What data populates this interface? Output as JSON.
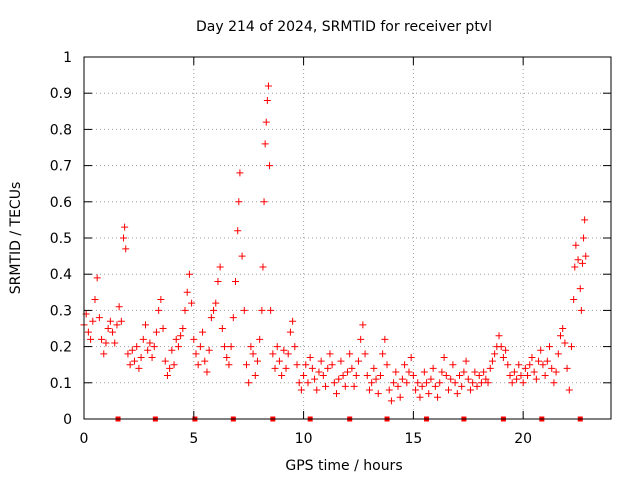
{
  "chart_data": {
    "type": "scatter",
    "title": "Day 214 of 2024, SRMTID for receiver ptvl",
    "xlabel": "GPS time / hours",
    "ylabel": "SRMTID / TECUs",
    "xlim": [
      0,
      24
    ],
    "ylim": [
      0,
      1
    ],
    "xticks": [
      0,
      5,
      10,
      15,
      20
    ],
    "xtick_labels": [
      "0",
      "5",
      "10",
      "15",
      "20"
    ],
    "yticks": [
      0,
      0.1,
      0.2,
      0.3,
      0.4,
      0.5,
      0.6,
      0.7,
      0.8,
      0.9,
      1
    ],
    "ytick_labels": [
      "0",
      "0.1",
      "0.2",
      "0.3",
      "0.4",
      "0.5",
      "0.6",
      "0.7",
      "0.8",
      "0.9",
      "1"
    ],
    "grid": true,
    "marker": "+",
    "color": "#ff0000",
    "series": [
      {
        "name": "SRMTID",
        "points": [
          [
            0.0,
            0.26
          ],
          [
            0.1,
            0.29
          ],
          [
            0.2,
            0.24
          ],
          [
            0.3,
            0.22
          ],
          [
            0.4,
            0.27
          ],
          [
            0.5,
            0.33
          ],
          [
            0.6,
            0.39
          ],
          [
            0.7,
            0.28
          ],
          [
            0.8,
            0.22
          ],
          [
            0.9,
            0.18
          ],
          [
            1.0,
            0.21
          ],
          [
            1.1,
            0.25
          ],
          [
            1.2,
            0.27
          ],
          [
            1.3,
            0.24
          ],
          [
            1.4,
            0.21
          ],
          [
            1.5,
            0.26
          ],
          [
            1.6,
            0.31
          ],
          [
            1.7,
            0.27
          ],
          [
            1.8,
            0.5
          ],
          [
            1.85,
            0.53
          ],
          [
            1.9,
            0.47
          ],
          [
            2.0,
            0.18
          ],
          [
            2.1,
            0.15
          ],
          [
            2.2,
            0.19
          ],
          [
            2.3,
            0.16
          ],
          [
            2.4,
            0.2
          ],
          [
            2.5,
            0.14
          ],
          [
            2.6,
            0.17
          ],
          [
            2.7,
            0.22
          ],
          [
            2.8,
            0.26
          ],
          [
            2.9,
            0.19
          ],
          [
            3.0,
            0.21
          ],
          [
            3.1,
            0.17
          ],
          [
            3.2,
            0.2
          ],
          [
            3.3,
            0.24
          ],
          [
            3.4,
            0.3
          ],
          [
            3.5,
            0.33
          ],
          [
            3.6,
            0.25
          ],
          [
            3.7,
            0.16
          ],
          [
            3.8,
            0.12
          ],
          [
            3.9,
            0.14
          ],
          [
            4.0,
            0.19
          ],
          [
            4.1,
            0.15
          ],
          [
            4.2,
            0.22
          ],
          [
            4.3,
            0.2
          ],
          [
            4.4,
            0.23
          ],
          [
            4.5,
            0.25
          ],
          [
            4.6,
            0.3
          ],
          [
            4.7,
            0.35
          ],
          [
            4.8,
            0.4
          ],
          [
            4.9,
            0.32
          ],
          [
            5.0,
            0.22
          ],
          [
            5.1,
            0.18
          ],
          [
            5.2,
            0.15
          ],
          [
            5.3,
            0.2
          ],
          [
            5.4,
            0.24
          ],
          [
            5.5,
            0.16
          ],
          [
            5.6,
            0.13
          ],
          [
            5.7,
            0.19
          ],
          [
            5.8,
            0.28
          ],
          [
            5.9,
            0.3
          ],
          [
            6.0,
            0.32
          ],
          [
            6.1,
            0.38
          ],
          [
            6.2,
            0.42
          ],
          [
            6.3,
            0.25
          ],
          [
            6.4,
            0.2
          ],
          [
            6.5,
            0.17
          ],
          [
            6.6,
            0.15
          ],
          [
            6.7,
            0.2
          ],
          [
            6.8,
            0.28
          ],
          [
            6.9,
            0.38
          ],
          [
            7.0,
            0.52
          ],
          [
            7.05,
            0.6
          ],
          [
            7.1,
            0.68
          ],
          [
            7.2,
            0.45
          ],
          [
            7.3,
            0.3
          ],
          [
            7.4,
            0.15
          ],
          [
            7.5,
            0.1
          ],
          [
            7.6,
            0.2
          ],
          [
            7.7,
            0.18
          ],
          [
            7.8,
            0.12
          ],
          [
            7.9,
            0.16
          ],
          [
            8.0,
            0.22
          ],
          [
            8.1,
            0.3
          ],
          [
            8.15,
            0.42
          ],
          [
            8.2,
            0.6
          ],
          [
            8.25,
            0.76
          ],
          [
            8.3,
            0.82
          ],
          [
            8.35,
            0.88
          ],
          [
            8.4,
            0.92
          ],
          [
            8.45,
            0.7
          ],
          [
            8.5,
            0.3
          ],
          [
            8.6,
            0.18
          ],
          [
            8.7,
            0.14
          ],
          [
            8.8,
            0.2
          ],
          [
            8.9,
            0.16
          ],
          [
            9.0,
            0.12
          ],
          [
            9.1,
            0.19
          ],
          [
            9.2,
            0.14
          ],
          [
            9.3,
            0.18
          ],
          [
            9.4,
            0.24
          ],
          [
            9.5,
            0.27
          ],
          [
            9.6,
            0.2
          ],
          [
            9.7,
            0.15
          ],
          [
            9.8,
            0.1
          ],
          [
            9.9,
            0.08
          ],
          [
            10.0,
            0.12
          ],
          [
            10.1,
            0.15
          ],
          [
            10.2,
            0.1
          ],
          [
            10.3,
            0.17
          ],
          [
            10.4,
            0.14
          ],
          [
            10.5,
            0.11
          ],
          [
            10.6,
            0.08
          ],
          [
            10.7,
            0.13
          ],
          [
            10.8,
            0.16
          ],
          [
            10.9,
            0.12
          ],
          [
            11.0,
            0.09
          ],
          [
            11.1,
            0.14
          ],
          [
            11.2,
            0.18
          ],
          [
            11.3,
            0.15
          ],
          [
            11.4,
            0.1
          ],
          [
            11.5,
            0.07
          ],
          [
            11.6,
            0.11
          ],
          [
            11.7,
            0.16
          ],
          [
            11.8,
            0.12
          ],
          [
            11.9,
            0.09
          ],
          [
            12.0,
            0.13
          ],
          [
            12.1,
            0.18
          ],
          [
            12.2,
            0.14
          ],
          [
            12.3,
            0.09
          ],
          [
            12.4,
            0.12
          ],
          [
            12.5,
            0.16
          ],
          [
            12.6,
            0.22
          ],
          [
            12.7,
            0.26
          ],
          [
            12.8,
            0.18
          ],
          [
            12.9,
            0.12
          ],
          [
            13.0,
            0.08
          ],
          [
            13.1,
            0.1
          ],
          [
            13.2,
            0.14
          ],
          [
            13.3,
            0.11
          ],
          [
            13.4,
            0.07
          ],
          [
            13.5,
            0.12
          ],
          [
            13.6,
            0.18
          ],
          [
            13.7,
            0.22
          ],
          [
            13.8,
            0.15
          ],
          [
            13.9,
            0.08
          ],
          [
            14.0,
            0.05
          ],
          [
            14.1,
            0.1
          ],
          [
            14.2,
            0.13
          ],
          [
            14.3,
            0.09
          ],
          [
            14.4,
            0.06
          ],
          [
            14.5,
            0.11
          ],
          [
            14.6,
            0.15
          ],
          [
            14.7,
            0.1
          ],
          [
            14.8,
            0.13
          ],
          [
            14.9,
            0.17
          ],
          [
            15.0,
            0.12
          ],
          [
            15.1,
            0.08
          ],
          [
            15.2,
            0.1
          ],
          [
            15.3,
            0.06
          ],
          [
            15.4,
            0.09
          ],
          [
            15.5,
            0.13
          ],
          [
            15.6,
            0.1
          ],
          [
            15.7,
            0.07
          ],
          [
            15.8,
            0.11
          ],
          [
            15.9,
            0.14
          ],
          [
            16.0,
            0.09
          ],
          [
            16.1,
            0.06
          ],
          [
            16.2,
            0.1
          ],
          [
            16.3,
            0.13
          ],
          [
            16.4,
            0.17
          ],
          [
            16.5,
            0.12
          ],
          [
            16.6,
            0.08
          ],
          [
            16.7,
            0.11
          ],
          [
            16.8,
            0.15
          ],
          [
            16.9,
            0.1
          ],
          [
            17.0,
            0.07
          ],
          [
            17.1,
            0.12
          ],
          [
            17.2,
            0.09
          ],
          [
            17.3,
            0.13
          ],
          [
            17.4,
            0.16
          ],
          [
            17.5,
            0.11
          ],
          [
            17.6,
            0.08
          ],
          [
            17.7,
            0.1
          ],
          [
            17.8,
            0.13
          ],
          [
            17.9,
            0.09
          ],
          [
            18.0,
            0.12
          ],
          [
            18.1,
            0.1
          ],
          [
            18.2,
            0.13
          ],
          [
            18.3,
            0.11
          ],
          [
            18.4,
            0.1
          ],
          [
            18.5,
            0.14
          ],
          [
            18.6,
            0.16
          ],
          [
            18.7,
            0.18
          ],
          [
            18.8,
            0.2
          ],
          [
            18.9,
            0.23
          ],
          [
            19.0,
            0.2
          ],
          [
            19.1,
            0.17
          ],
          [
            19.2,
            0.19
          ],
          [
            19.3,
            0.15
          ],
          [
            19.4,
            0.12
          ],
          [
            19.5,
            0.1
          ],
          [
            19.6,
            0.13
          ],
          [
            19.7,
            0.11
          ],
          [
            19.8,
            0.15
          ],
          [
            19.9,
            0.12
          ],
          [
            20.0,
            0.1
          ],
          [
            20.1,
            0.14
          ],
          [
            20.2,
            0.12
          ],
          [
            20.3,
            0.15
          ],
          [
            20.4,
            0.17
          ],
          [
            20.5,
            0.13
          ],
          [
            20.6,
            0.11
          ],
          [
            20.7,
            0.16
          ],
          [
            20.8,
            0.19
          ],
          [
            20.9,
            0.15
          ],
          [
            21.0,
            0.12
          ],
          [
            21.1,
            0.16
          ],
          [
            21.2,
            0.2
          ],
          [
            21.3,
            0.14
          ],
          [
            21.4,
            0.1
          ],
          [
            21.5,
            0.13
          ],
          [
            21.6,
            0.18
          ],
          [
            21.7,
            0.23
          ],
          [
            21.8,
            0.25
          ],
          [
            21.9,
            0.21
          ],
          [
            22.0,
            0.14
          ],
          [
            22.1,
            0.08
          ],
          [
            22.2,
            0.2
          ],
          [
            22.3,
            0.33
          ],
          [
            22.35,
            0.42
          ],
          [
            22.4,
            0.48
          ],
          [
            22.5,
            0.44
          ],
          [
            22.6,
            0.36
          ],
          [
            22.65,
            0.3
          ],
          [
            22.7,
            0.43
          ],
          [
            22.75,
            0.5
          ],
          [
            22.8,
            0.55
          ],
          [
            22.85,
            0.45
          ]
        ]
      }
    ],
    "baseline_markers_x": [
      1.55,
      3.25,
      5.05,
      6.8,
      8.6,
      10.3,
      12.1,
      13.8,
      15.6,
      17.3,
      19.1,
      20.85,
      22.6
    ]
  }
}
